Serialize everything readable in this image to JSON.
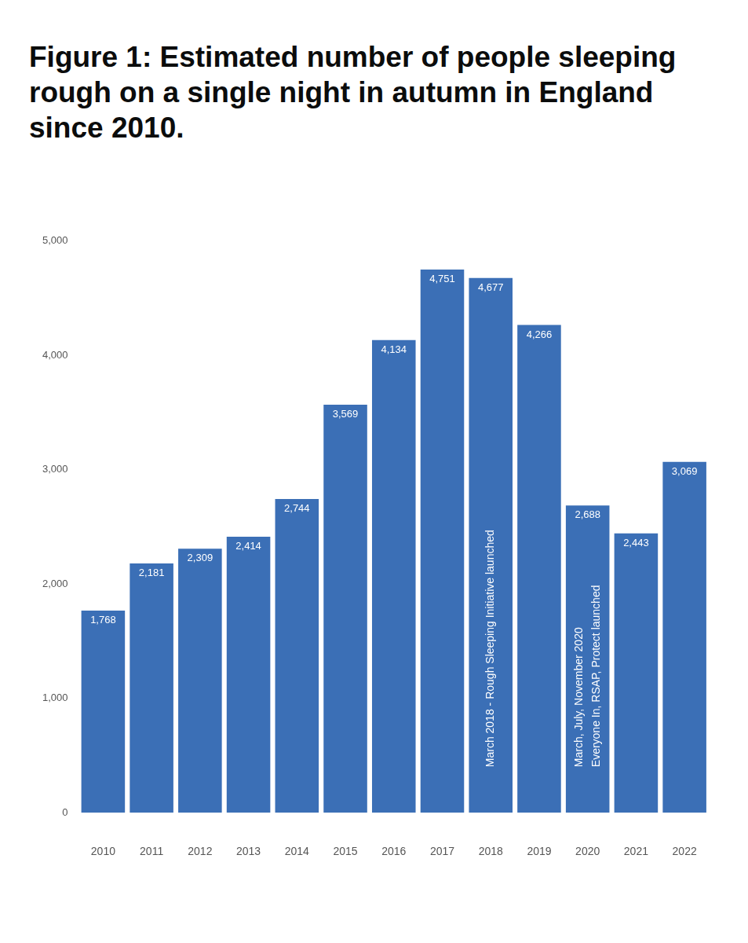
{
  "chart_data": {
    "type": "bar",
    "title": "Figure 1: Estimated number of people sleeping rough on a single night in autumn in England since 2010.",
    "categories": [
      "2010",
      "2011",
      "2012",
      "2013",
      "2014",
      "2015",
      "2016",
      "2017",
      "2018",
      "2019",
      "2020",
      "2021",
      "2022"
    ],
    "values": [
      1768,
      2181,
      2309,
      2414,
      2744,
      3569,
      4134,
      4751,
      4677,
      4266,
      2688,
      2443,
      3069
    ],
    "value_labels": [
      "1,768",
      "2,181",
      "2,309",
      "2,414",
      "2,744",
      "3,569",
      "4,134",
      "4,751",
      "4,677",
      "4,266",
      "2,688",
      "2,443",
      "3,069"
    ],
    "data_labels": true,
    "color": "#3b6fb6",
    "ylim": [
      0,
      5000
    ],
    "yticks": [
      0,
      {
        "value": 1000,
        "label": "1,000"
      },
      {
        "value": 2000,
        "label": "2,000"
      },
      {
        "value": 3000,
        "label": "3,000"
      },
      {
        "value": 4000,
        "label": "4,000"
      },
      {
        "value": 5000,
        "label": "5,000"
      }
    ],
    "grid": false,
    "annotations": [
      {
        "category": "2018",
        "text": [
          "March 2018 - Rough Sleeping Initiative launched"
        ]
      },
      {
        "category": "2020",
        "text": [
          "March, July, November 2020",
          "Everyone In, RSAP, Protect launched"
        ]
      }
    ]
  }
}
